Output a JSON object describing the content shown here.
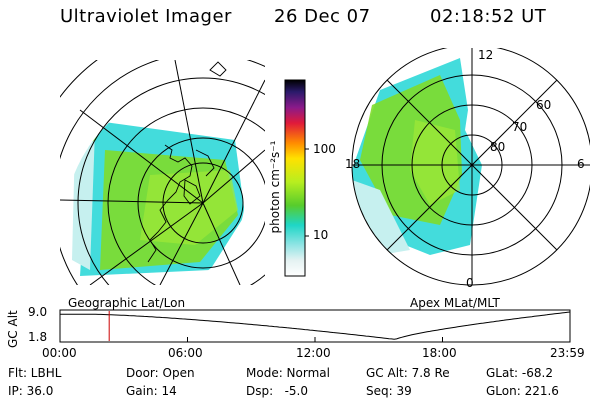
{
  "header": {
    "instrument": "Ultraviolet Imager",
    "date": "26 Dec 07",
    "time": "02:18:52 UT"
  },
  "geographic_panel": {
    "label": "Geographic Lat/Lon"
  },
  "colorbar": {
    "axis_label": "photon cm⁻²s⁻¹",
    "tick_top": "100",
    "tick_bottom": "10",
    "scale": "log"
  },
  "apex_panel": {
    "label": "Apex  MLat/MLT",
    "mlt_labels": {
      "top": "12",
      "left": "18",
      "right": "6",
      "bottom": "0"
    },
    "mlat_labels": [
      "60",
      "70",
      "80"
    ]
  },
  "altitude_plot": {
    "axis_label": "GC Alt",
    "y_ticks": [
      "9.0",
      "1.8"
    ],
    "x_ticks": [
      "00:00",
      "06:00",
      "12:00",
      "18:00",
      "23:59"
    ],
    "marker_time_hours": 2.3147,
    "curve_color": "#000000",
    "marker_color": "#cc0000"
  },
  "status": {
    "row1": [
      {
        "key": "filter",
        "text": "Flt: LBHL"
      },
      {
        "key": "door",
        "text": "Door: Open"
      },
      {
        "key": "mode",
        "text": "Mode: Normal"
      },
      {
        "key": "gc_alt",
        "text": "GC Alt: 7.8 Re"
      },
      {
        "key": "glat",
        "text": "GLat: -68.2"
      }
    ],
    "row2": [
      {
        "key": "ip",
        "text": "IP: 36.0"
      },
      {
        "key": "gain",
        "text": "Gain: 14"
      },
      {
        "key": "dsp",
        "text": "Dsp:   -5.0"
      },
      {
        "key": "seq",
        "text": "Seq: 39"
      },
      {
        "key": "glon",
        "text": "GLon: 221.6"
      }
    ]
  },
  "colors": {
    "aurora_green": "#7fdc2a",
    "aurora_cyan": "#22d6d6",
    "aurora_light": "#c6f0ef"
  }
}
